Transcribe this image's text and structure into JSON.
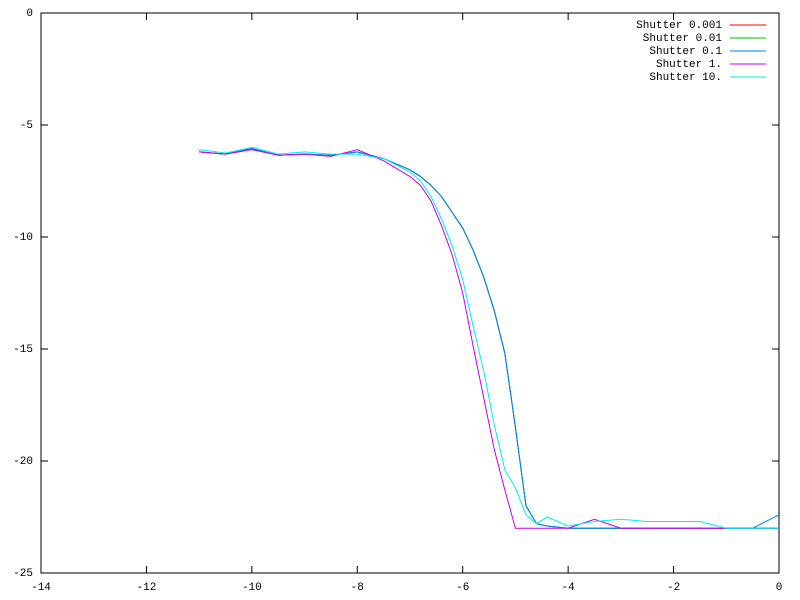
{
  "chart_data": {
    "type": "line",
    "x": [
      -11,
      -10.5,
      -10,
      -9.5,
      -9,
      -8.5,
      -8,
      -7.5,
      -7,
      -6.8,
      -6.6,
      -6.4,
      -6.2,
      -6,
      -5.8,
      -5.6,
      -5.4,
      -5.2,
      -5,
      -4.8,
      -4.6,
      -4.4,
      -4,
      -3.5,
      -3,
      -2.5,
      -2,
      -1.5,
      -1,
      -0.5,
      0
    ],
    "series": [
      {
        "name": "Shutter 0.001",
        "color": "#ff0000",
        "values": [
          -6.2,
          -6.3,
          -6.05,
          -6.35,
          -6.3,
          -6.35,
          -6.2,
          -6.5,
          -7.0,
          -7.3,
          -7.7,
          -8.2,
          -8.9,
          -9.6,
          -10.6,
          -11.8,
          -13.3,
          -15.2,
          -18.5,
          -22,
          -22.8,
          -22.9,
          -23,
          -23,
          -23,
          -23,
          -23,
          -23,
          -23,
          -23,
          -23
        ]
      },
      {
        "name": "Shutter 0.01",
        "color": "#00c000",
        "values": [
          -6.2,
          -6.3,
          -6.05,
          -6.35,
          -6.3,
          -6.35,
          -6.2,
          -6.5,
          -7.0,
          -7.3,
          -7.7,
          -8.2,
          -8.9,
          -9.6,
          -10.6,
          -11.8,
          -13.3,
          -15.2,
          -18.5,
          -22,
          -22.8,
          -22.9,
          -23,
          -23,
          -23,
          -23,
          -23,
          -23,
          -23,
          -23,
          -23
        ]
      },
      {
        "name": "Shutter 0.1",
        "color": "#0080ff",
        "values": [
          -6.2,
          -6.3,
          -6.05,
          -6.35,
          -6.3,
          -6.35,
          -6.2,
          -6.5,
          -7.0,
          -7.3,
          -7.7,
          -8.2,
          -8.9,
          -9.6,
          -10.6,
          -11.8,
          -13.3,
          -15.2,
          -18.5,
          -22,
          -22.8,
          -22.9,
          -23,
          -23,
          -23,
          -23,
          -23,
          -23,
          -23,
          -23,
          -22.4
        ]
      },
      {
        "name": "Shutter 1.",
        "color": "#c000ff",
        "values": [
          -6.2,
          -6.3,
          -6.1,
          -6.35,
          -6.3,
          -6.4,
          -6.1,
          -6.6,
          -7.3,
          -7.7,
          -8.4,
          -9.5,
          -10.8,
          -12.5,
          -14.9,
          -17.2,
          -19.5,
          -21.3,
          -23,
          -23,
          -23,
          -23,
          -23,
          -22.6,
          -23,
          -23,
          -23,
          -23,
          -23,
          -23,
          -23
        ]
      },
      {
        "name": "Shutter 10.",
        "color": "#00eeee",
        "values": [
          -6.1,
          -6.25,
          -6.0,
          -6.3,
          -6.2,
          -6.3,
          -6.3,
          -6.5,
          -7.1,
          -7.5,
          -8.2,
          -9.2,
          -10.4,
          -11.9,
          -14.0,
          -16.0,
          -18.4,
          -20.4,
          -21.2,
          -22.4,
          -22.8,
          -22.5,
          -22.9,
          -22.7,
          -22.6,
          -22.7,
          -22.7,
          -22.7,
          -23,
          -23,
          -23
        ]
      }
    ],
    "xlim": [
      -14,
      0
    ],
    "xticks": [
      -14,
      -12,
      -10,
      -8,
      -6,
      -4,
      -2,
      0
    ],
    "ylim": [
      -25,
      0
    ],
    "yticks": [
      0,
      -5,
      -10,
      -15,
      -20,
      -25
    ],
    "legend": "top-right"
  }
}
